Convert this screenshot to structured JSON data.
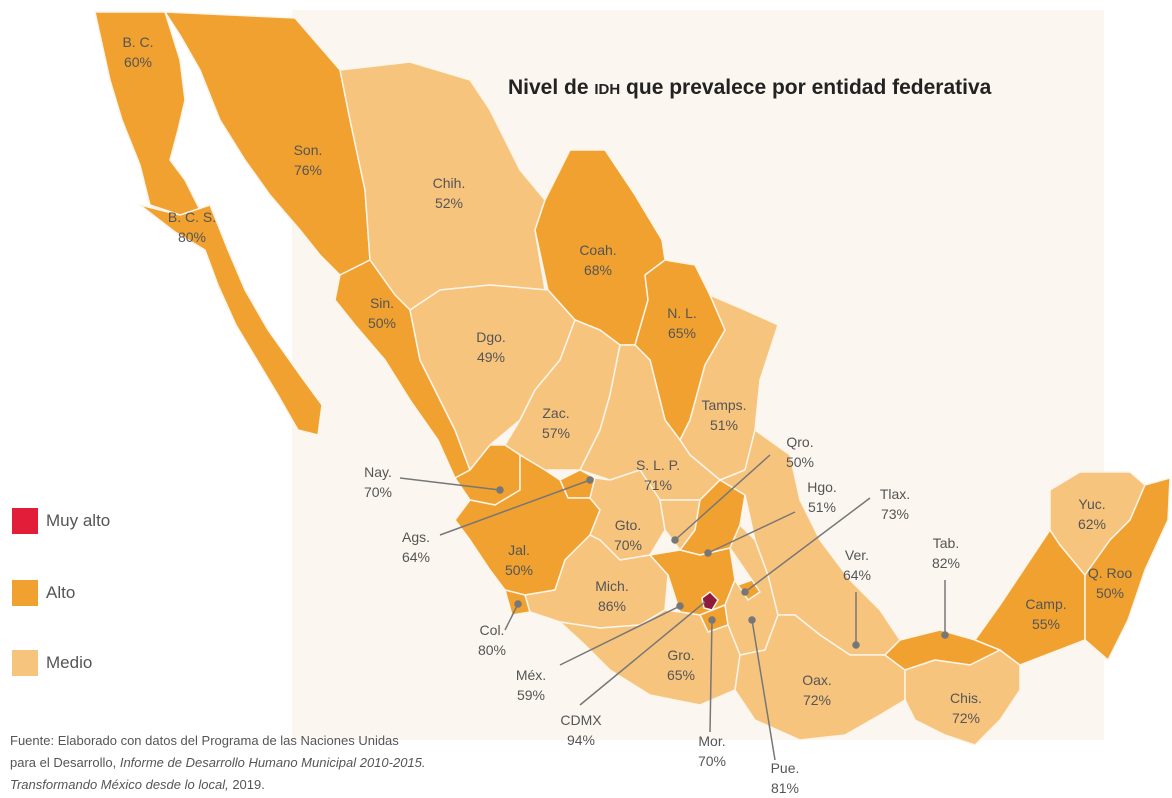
{
  "title_prefix": "Nivel de ",
  "title_acronym": "IDH",
  "title_suffix": " que prevalece por entidad federativa",
  "colors": {
    "muy_alto": "#e11d3a",
    "alto": "#f0a12f",
    "medio": "#f7c47e",
    "cdmx": "#8e1a3c"
  },
  "legend": {
    "muy_alto": "Muy alto",
    "alto": "Alto",
    "medio": "Medio"
  },
  "states": {
    "bc": {
      "name": "B. C.",
      "value": "60%",
      "level": "alto"
    },
    "bcs": {
      "name": "B. C. S.",
      "value": "80%",
      "level": "alto"
    },
    "son": {
      "name": "Son.",
      "value": "76%",
      "level": "alto"
    },
    "chih": {
      "name": "Chih.",
      "value": "52%",
      "level": "medio"
    },
    "coah": {
      "name": "Coah.",
      "value": "68%",
      "level": "alto"
    },
    "nl": {
      "name": "N. L.",
      "value": "65%",
      "level": "alto"
    },
    "sin": {
      "name": "Sin.",
      "value": "50%",
      "level": "alto"
    },
    "dgo": {
      "name": "Dgo.",
      "value": "49%",
      "level": "medio"
    },
    "zac": {
      "name": "Zac.",
      "value": "57%",
      "level": "medio"
    },
    "tamps": {
      "name": "Tamps.",
      "value": "51%",
      "level": "medio"
    },
    "slp": {
      "name": "S. L. P.",
      "value": "71%",
      "level": "medio"
    },
    "qro": {
      "name": "Qro.",
      "value": "50%",
      "level": "medio"
    },
    "nay": {
      "name": "Nay.",
      "value": "70%",
      "level": "alto"
    },
    "ags": {
      "name": "Ags.",
      "value": "64%",
      "level": "alto"
    },
    "hgo": {
      "name": "Hgo.",
      "value": "51%",
      "level": "alto"
    },
    "tlax": {
      "name": "Tlax.",
      "value": "73%",
      "level": "alto"
    },
    "gto": {
      "name": "Gto.",
      "value": "70%",
      "level": "medio"
    },
    "jal": {
      "name": "Jal.",
      "value": "50%",
      "level": "alto"
    },
    "mich": {
      "name": "Mich.",
      "value": "86%",
      "level": "medio"
    },
    "col": {
      "name": "Col.",
      "value": "80%",
      "level": "alto"
    },
    "mex": {
      "name": "Méx.",
      "value": "59%",
      "level": "alto"
    },
    "cdmx": {
      "name": "CDMX",
      "value": "94%",
      "level": "muy_alto"
    },
    "gro": {
      "name": "Gro.",
      "value": "65%",
      "level": "medio"
    },
    "mor": {
      "name": "Mor.",
      "value": "70%",
      "level": "alto"
    },
    "pue": {
      "name": "Pue.",
      "value": "81%",
      "level": "medio"
    },
    "ver": {
      "name": "Ver.",
      "value": "64%",
      "level": "medio"
    },
    "tab": {
      "name": "Tab.",
      "value": "82%",
      "level": "alto"
    },
    "oax": {
      "name": "Oax.",
      "value": "72%",
      "level": "medio"
    },
    "chis": {
      "name": "Chis.",
      "value": "72%",
      "level": "medio"
    },
    "camp": {
      "name": "Camp.",
      "value": "55%",
      "level": "alto"
    },
    "yuc": {
      "name": "Yuc.",
      "value": "62%",
      "level": "medio"
    },
    "qroo": {
      "name": "Q. Roo",
      "value": "50%",
      "level": "alto"
    }
  },
  "source": {
    "line1": "Fuente: Elaborado con datos del Programa de las Naciones Unidas",
    "line2_prefix": "para el Desarrollo, ",
    "line2_italic": "Informe de Desarrollo Humano Municipal 2010-2015.",
    "line3_italic": "Transformando México desde lo local,",
    "line3_suffix": " 2019."
  }
}
